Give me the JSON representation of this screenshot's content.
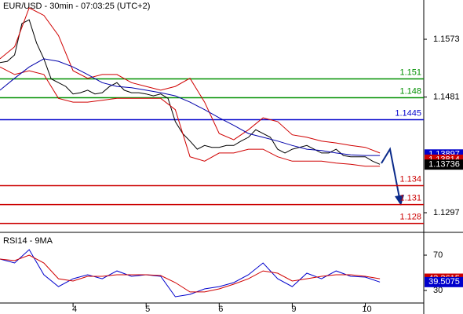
{
  "chart_data": [
    {
      "type": "line",
      "title": "EUR/USD - 30min - 07:03:25 (UTC+2)",
      "xlim": [
        0,
        5.8
      ],
      "ylim": [
        1.1267,
        1.16355
      ],
      "yticks": [
        1.1573,
        1.1481,
        1.1297
      ],
      "series": [
        {
          "color": "#000000",
          "x": [
            0,
            0.1,
            0.2,
            0.3,
            0.4,
            0.5,
            0.6,
            0.7,
            0.8,
            0.9,
            1.0,
            1.1,
            1.2,
            1.3,
            1.4,
            1.5,
            1.6,
            1.7,
            1.8,
            1.9,
            2.0,
            2.1,
            2.2,
            2.3,
            2.4,
            2.5,
            2.6,
            2.7,
            2.8,
            2.9,
            3.0,
            3.1,
            3.2,
            3.3,
            3.4,
            3.5,
            3.6,
            3.7,
            3.8,
            3.9,
            4.0,
            4.1,
            4.2,
            4.3,
            4.4,
            4.5,
            4.6,
            4.7,
            4.8,
            4.9,
            5.0,
            5.1,
            5.2
          ],
          "values": [
            1.1536,
            1.1538,
            1.1548,
            1.1598,
            1.1604,
            1.1567,
            1.1542,
            1.151,
            1.1504,
            1.1498,
            1.1486,
            1.1488,
            1.1492,
            1.1486,
            1.1488,
            1.1498,
            1.1504,
            1.1492,
            1.1488,
            1.1488,
            1.1486,
            1.1483,
            1.1486,
            1.1479,
            1.1442,
            1.1423,
            1.1411,
            1.1398,
            1.1404,
            1.1401,
            1.1401,
            1.1404,
            1.1404,
            1.1411,
            1.1417,
            1.1429,
            1.1423,
            1.1417,
            1.1398,
            1.1392,
            1.1398,
            1.1401,
            1.1404,
            1.1398,
            1.1392,
            1.1392,
            1.1398,
            1.1388,
            1.1386,
            1.1386,
            1.1386,
            1.1379,
            1.1374
          ]
        },
        {
          "color": "#d00000",
          "x": [
            0,
            0.2,
            0.4,
            0.6,
            0.8,
            1.0,
            1.2,
            1.4,
            1.6,
            1.8,
            2.0,
            2.2,
            2.4,
            2.6,
            2.8,
            3.0,
            3.2,
            3.4,
            3.6,
            3.8,
            4.0,
            4.2,
            4.4,
            4.6,
            4.8,
            5.0,
            5.2
          ],
          "values": [
            1.1542,
            1.1561,
            1.1623,
            1.1611,
            1.1579,
            1.1523,
            1.1511,
            1.1517,
            1.1517,
            1.1504,
            1.1498,
            1.1492,
            1.1498,
            1.1511,
            1.1473,
            1.1423,
            1.1413,
            1.1429,
            1.1448,
            1.1442,
            1.1421,
            1.1417,
            1.1411,
            1.1408,
            1.1404,
            1.1401,
            1.1392
          ]
        },
        {
          "color": "#d00000",
          "x": [
            0,
            0.2,
            0.4,
            0.6,
            0.8,
            1.0,
            1.2,
            1.4,
            1.6,
            1.8,
            2.0,
            2.2,
            2.4,
            2.6,
            2.8,
            3.0,
            3.2,
            3.4,
            3.6,
            3.8,
            4.0,
            4.2,
            4.4,
            4.6,
            4.8,
            5.0,
            5.2
          ],
          "values": [
            1.1529,
            1.1517,
            1.1523,
            1.1517,
            1.1479,
            1.1473,
            1.1473,
            1.1476,
            1.1479,
            1.1479,
            1.1479,
            1.1479,
            1.1461,
            1.1386,
            1.1379,
            1.1392,
            1.1392,
            1.1398,
            1.1398,
            1.1386,
            1.1379,
            1.1379,
            1.1379,
            1.1376,
            1.1374,
            1.1371,
            1.1371
          ]
        },
        {
          "color": "#0000aa",
          "x": [
            0,
            0.2,
            0.4,
            0.6,
            0.8,
            1.0,
            1.2,
            1.4,
            1.6,
            1.8,
            2.0,
            2.2,
            2.4,
            2.6,
            2.8,
            3.0,
            3.2,
            3.4,
            3.6,
            3.8,
            4.0,
            4.2,
            4.4,
            4.6,
            4.8,
            5.0,
            5.2
          ],
          "values": [
            1.1492,
            1.1511,
            1.1529,
            1.1542,
            1.1538,
            1.1529,
            1.1517,
            1.1504,
            1.1498,
            1.1496,
            1.1492,
            1.1488,
            1.1483,
            1.1473,
            1.1461,
            1.1448,
            1.1436,
            1.1423,
            1.1417,
            1.1411,
            1.1404,
            1.1398,
            1.1396,
            1.1392,
            1.1389,
            1.1388,
            1.1388
          ]
        }
      ],
      "levels": [
        {
          "value": 1.151,
          "color": "#009000"
        },
        {
          "value": 1.148,
          "color": "#009000"
        },
        {
          "value": 1.1445,
          "color": "#0000cc"
        },
        {
          "value": 1.134,
          "color": "#cc0000"
        },
        {
          "value": 1.131,
          "color": "#cc0000"
        },
        {
          "value": 1.128,
          "color": "#cc0000"
        }
      ],
      "markers": [
        {
          "value": 1.13897,
          "color": "#0000cc"
        },
        {
          "value": 1.13814,
          "color": "#cc0000"
        },
        {
          "value": 1.13736,
          "color": "#000000"
        }
      ]
    },
    {
      "type": "line",
      "title": "RSI14 - 9MA",
      "xlim": [
        0,
        5.8
      ],
      "ylim": [
        16.7,
        94.9
      ],
      "yticks": [
        70,
        30
      ],
      "xticks": [
        {
          "value": 1,
          "label": "4"
        },
        {
          "value": 2,
          "label": "5"
        },
        {
          "value": 3,
          "label": "6"
        },
        {
          "value": 4,
          "label": "9"
        },
        {
          "value": 5,
          "label": "10"
        }
      ],
      "series": [
        {
          "color": "#0000cc",
          "x": [
            0,
            0.2,
            0.4,
            0.6,
            0.8,
            1.0,
            1.2,
            1.4,
            1.6,
            1.8,
            2.0,
            2.2,
            2.4,
            2.6,
            2.8,
            3.0,
            3.2,
            3.4,
            3.6,
            3.8,
            4.0,
            4.2,
            4.4,
            4.6,
            4.8,
            5.0,
            5.2
          ],
          "values": [
            65.6,
            61.1,
            76.2,
            47.8,
            34.4,
            43.3,
            47.8,
            43.3,
            52.2,
            46.0,
            47.8,
            46.0,
            22.9,
            25.6,
            31.8,
            34.4,
            38.9,
            47.8,
            61.1,
            43.3,
            34.4,
            49.6,
            43.3,
            52.2,
            46.0,
            45.1,
            39.5
          ]
        },
        {
          "color": "#d00000",
          "x": [
            0,
            0.2,
            0.4,
            0.6,
            0.8,
            1.0,
            1.2,
            1.4,
            1.6,
            1.8,
            2.0,
            2.2,
            2.4,
            2.6,
            2.8,
            3.0,
            3.2,
            3.4,
            3.6,
            3.8,
            4.0,
            4.2,
            4.4,
            4.6,
            4.8,
            5.0,
            5.2
          ],
          "values": [
            65.6,
            63.8,
            70.0,
            61.1,
            43.3,
            40.7,
            46.0,
            46.0,
            47.8,
            47.8,
            47.8,
            46.9,
            38.9,
            28.3,
            28.3,
            31.8,
            37.1,
            43.3,
            52.2,
            49.6,
            40.7,
            43.3,
            46.0,
            47.8,
            47.8,
            46.0,
            43.3
          ]
        }
      ],
      "markers": [
        {
          "value": 43.3615,
          "color": "#cc0000"
        },
        {
          "value": 39.5075,
          "color": "#0000cc"
        }
      ]
    }
  ]
}
